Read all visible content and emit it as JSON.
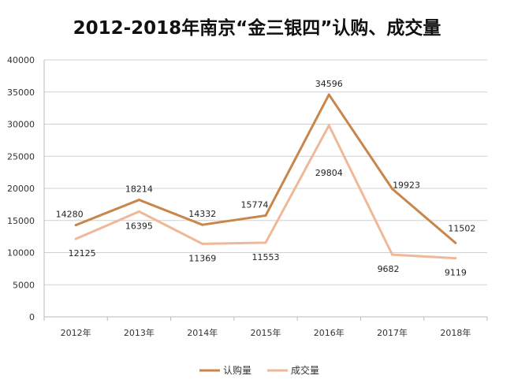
{
  "chart_data": {
    "type": "line",
    "title": "2012-2018年南京“金三银四”认购、成交量",
    "categories": [
      "2012年",
      "2013年",
      "2014年",
      "2015年",
      "2016年",
      "2017年",
      "2018年"
    ],
    "series": [
      {
        "name": "认购量",
        "color": "#C8864A",
        "values": [
          14280,
          18214,
          14332,
          15774,
          34596,
          19923,
          11502
        ]
      },
      {
        "name": "成交量",
        "color": "#EFB898",
        "values": [
          12125,
          16395,
          11369,
          11553,
          29804,
          9682,
          9119
        ]
      }
    ],
    "ylim": [
      0,
      40000
    ],
    "yticks": [
      0,
      5000,
      10000,
      15000,
      20000,
      25000,
      30000,
      35000,
      40000
    ],
    "xlabel": "",
    "ylabel": "",
    "grid": true,
    "legend": "bottom"
  }
}
